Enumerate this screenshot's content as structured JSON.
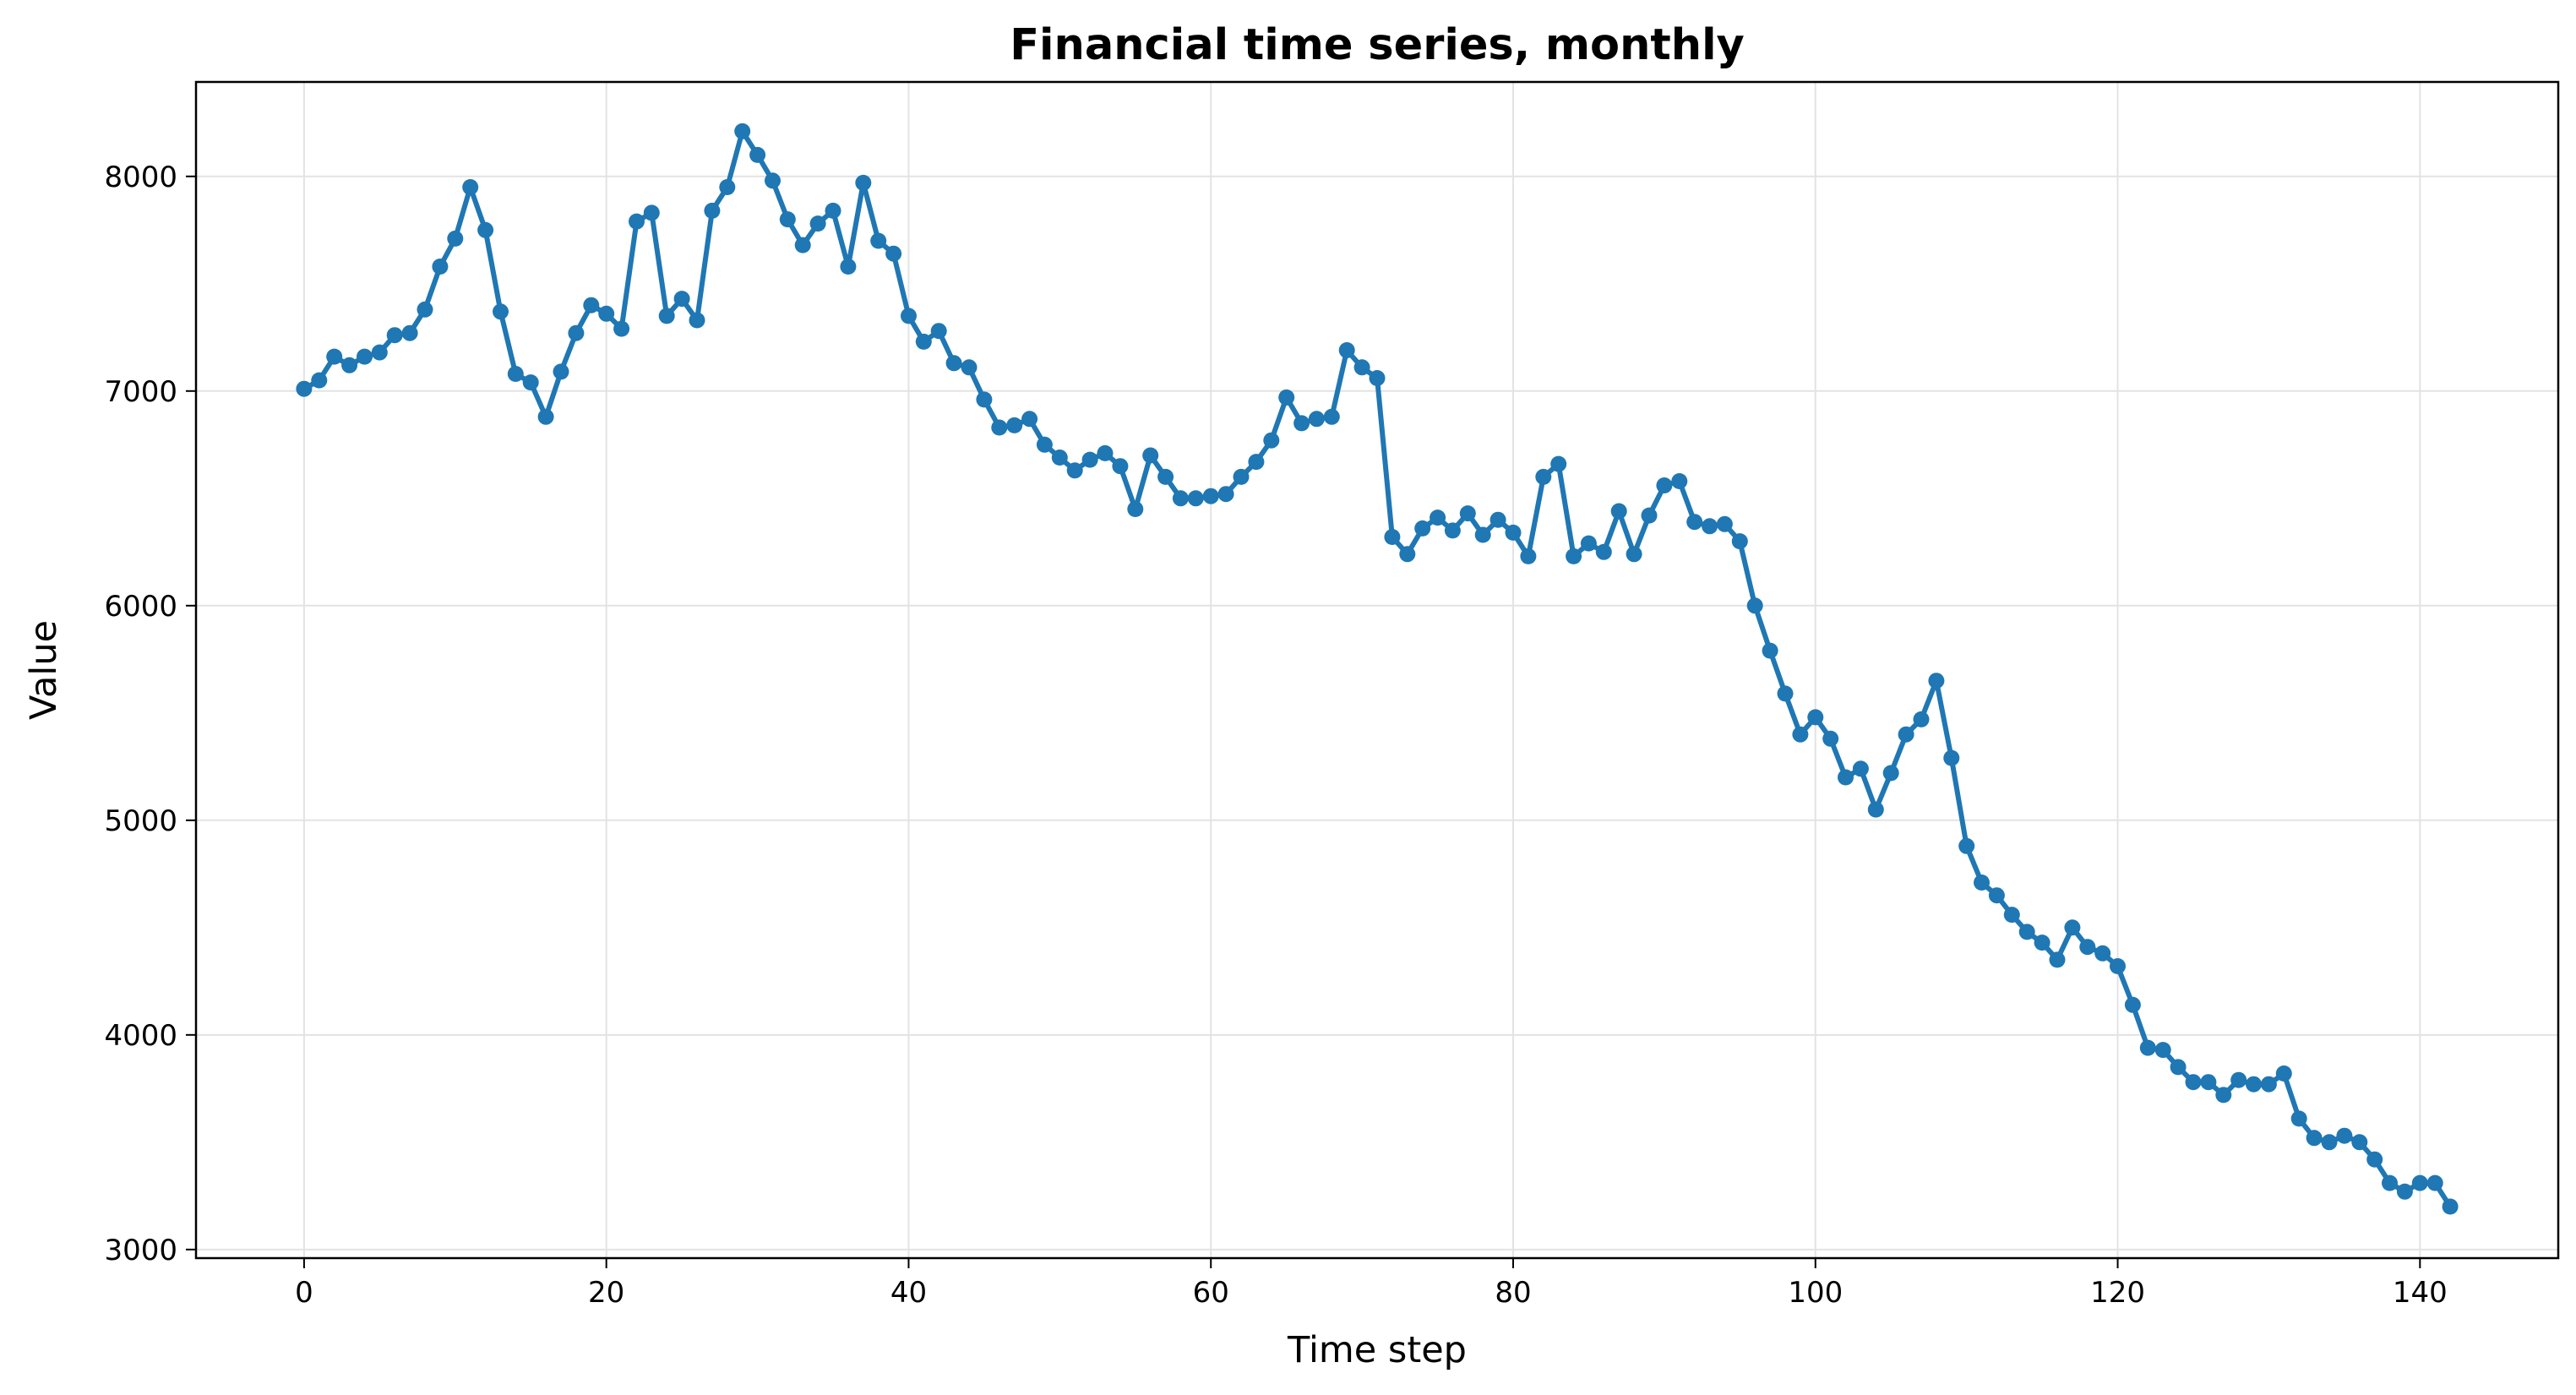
{
  "chart_data": {
    "type": "line",
    "title": "Financial time series, monthly",
    "xlabel": "Time step",
    "ylabel": "Value",
    "xlim": [
      -7.15,
      149.15
    ],
    "ylim": [
      2960,
      8440
    ],
    "xticks": [
      0,
      20,
      40,
      60,
      80,
      100,
      120,
      140
    ],
    "yticks": [
      3000,
      4000,
      5000,
      6000,
      7000,
      8000
    ],
    "xtick_labels": [
      "0",
      "20",
      "40",
      "60",
      "80",
      "100",
      "120",
      "140"
    ],
    "ytick_labels": [
      "3000",
      "4000",
      "5000",
      "6000",
      "7000",
      "8000"
    ],
    "grid": true,
    "colors": {
      "series": "#1f77b4"
    },
    "series": [
      {
        "values": [
          7010,
          7050,
          7160,
          7120,
          7160,
          7180,
          7260,
          7270,
          7380,
          7580,
          7710,
          7950,
          7750,
          7370,
          7080,
          7040,
          6880,
          7090,
          7270,
          7400,
          7360,
          7290,
          7790,
          7830,
          7350,
          7430,
          7330,
          7840,
          7950,
          8210,
          8100,
          7980,
          7800,
          7680,
          7780,
          7840,
          7580,
          7970,
          7700,
          7640,
          7350,
          7230,
          7280,
          7130,
          7110,
          6960,
          6830,
          6840,
          6870,
          6750,
          6690,
          6630,
          6680,
          6710,
          6650,
          6450,
          6700,
          6600,
          6500,
          6500,
          6510,
          6520,
          6600,
          6670,
          6770,
          6970,
          6850,
          6870,
          6880,
          7190,
          7110,
          7060,
          6320,
          6240,
          6360,
          6410,
          6350,
          6430,
          6330,
          6400,
          6340,
          6230,
          6600,
          6660,
          6230,
          6290,
          6250,
          6440,
          6240,
          6420,
          6560,
          6580,
          6390,
          6370,
          6380,
          6300,
          6000,
          5790,
          5590,
          5400,
          5480,
          5380,
          5200,
          5240,
          5050,
          5220,
          5400,
          5470,
          5650,
          5290,
          4880,
          4710,
          4650,
          4560,
          4480,
          4430,
          4350,
          4500,
          4410,
          4380,
          4320,
          4140,
          3940,
          3930,
          3850,
          3780,
          3780,
          3720,
          3790,
          3770,
          3770,
          3820,
          3610,
          3520,
          3500,
          3530,
          3500,
          3420,
          3310,
          3270,
          3310,
          3310,
          3200
        ]
      }
    ]
  }
}
